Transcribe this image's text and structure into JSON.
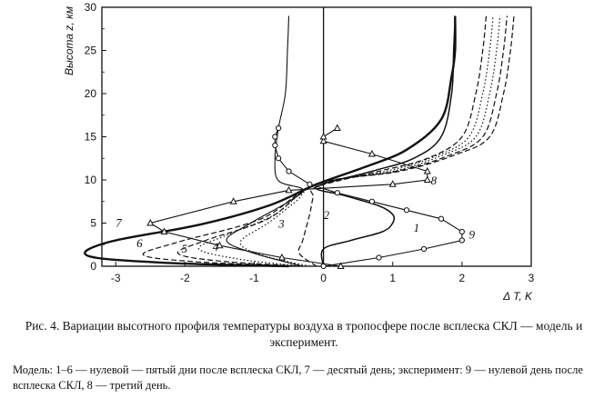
{
  "caption": {
    "title": "Рис. 4. Вариации высотного профиля температуры воздуха в тропосфере после всплеска СКЛ — модель и эксперимент.",
    "legend": "Модель: 1–6 — нулевой — пятый дни после всплеска СКЛ, 7 — десятый день; эксперимент: 9 — нулевой день после всплеска СКЛ, 8 — третий день."
  },
  "chart_data": {
    "type": "line",
    "xlabel": "Δ T, K",
    "ylabel": "Высота z, км",
    "xlim": [
      -3.2,
      3.0
    ],
    "ylim": [
      0,
      30
    ],
    "xticks": [
      -3,
      -2,
      -1,
      0,
      1,
      2,
      3
    ],
    "yticks": [
      0,
      5,
      10,
      15,
      20,
      25,
      30
    ],
    "series": [
      {
        "name": "1",
        "style": "solid",
        "points": [
          [
            0,
            0
          ],
          [
            0,
            2
          ],
          [
            0.4,
            3
          ],
          [
            0.85,
            4
          ],
          [
            1.0,
            5
          ],
          [
            1.0,
            6
          ],
          [
            0.8,
            7
          ],
          [
            0.3,
            8.2
          ],
          [
            -0.1,
            9.2
          ],
          [
            0.7,
            11
          ],
          [
            1.3,
            12.5
          ],
          [
            1.7,
            15
          ],
          [
            1.85,
            20
          ],
          [
            1.88,
            25
          ],
          [
            1.9,
            29
          ]
        ]
      },
      {
        "name": "2",
        "style": "dashed",
        "points": [
          [
            -0.1,
            0
          ],
          [
            -0.35,
            1.5
          ],
          [
            -0.3,
            3
          ],
          [
            -0.2,
            6
          ],
          [
            -0.15,
            8
          ],
          [
            -0.1,
            9.2
          ],
          [
            0.8,
            11
          ],
          [
            1.5,
            12.5
          ],
          [
            2.0,
            15
          ],
          [
            2.2,
            20
          ],
          [
            2.3,
            25
          ],
          [
            2.35,
            29
          ]
        ]
      },
      {
        "name": "3",
        "style": "dotted",
        "points": [
          [
            -0.2,
            0
          ],
          [
            -0.9,
            1.3
          ],
          [
            -1.2,
            2.8
          ],
          [
            -0.8,
            5
          ],
          [
            -0.4,
            7.5
          ],
          [
            -0.1,
            9.5
          ],
          [
            0.9,
            11
          ],
          [
            1.6,
            12.7
          ],
          [
            2.1,
            15
          ],
          [
            2.3,
            20
          ],
          [
            2.4,
            25
          ],
          [
            2.45,
            29
          ]
        ]
      },
      {
        "name": "4",
        "style": "dotted",
        "points": [
          [
            -0.3,
            0
          ],
          [
            -1.2,
            0.8
          ],
          [
            -1.8,
            2
          ],
          [
            -1.4,
            3.6
          ],
          [
            -0.7,
            6
          ],
          [
            -0.1,
            9.5
          ],
          [
            1.0,
            11
          ],
          [
            1.7,
            12.8
          ],
          [
            2.2,
            15
          ],
          [
            2.4,
            20
          ],
          [
            2.5,
            25
          ],
          [
            2.55,
            29
          ]
        ]
      },
      {
        "name": "5",
        "style": "dashed",
        "points": [
          [
            -0.3,
            0
          ],
          [
            -1.5,
            0.6
          ],
          [
            -2.1,
            1.5
          ],
          [
            -1.7,
            3
          ],
          [
            -0.8,
            5.5
          ],
          [
            -0.1,
            9.5
          ],
          [
            1.05,
            11
          ],
          [
            1.8,
            12.8
          ],
          [
            2.3,
            15
          ],
          [
            2.5,
            20
          ],
          [
            2.6,
            25
          ],
          [
            2.65,
            29
          ]
        ]
      },
      {
        "name": "6",
        "style": "dashed",
        "points": [
          [
            -0.35,
            0
          ],
          [
            -1.8,
            0.5
          ],
          [
            -2.6,
            1.3
          ],
          [
            -2.1,
            2.8
          ],
          [
            -0.9,
            5.5
          ],
          [
            -0.1,
            9.5
          ],
          [
            1.1,
            11
          ],
          [
            1.9,
            12.9
          ],
          [
            2.4,
            15
          ],
          [
            2.6,
            20
          ],
          [
            2.7,
            25
          ],
          [
            2.75,
            29
          ]
        ]
      },
      {
        "name": "7",
        "style": "solid-bold",
        "points": [
          [
            -0.5,
            0
          ],
          [
            -2.3,
            0.4
          ],
          [
            -3.4,
            1.2
          ],
          [
            -3.1,
            2.8
          ],
          [
            -1.8,
            4.8
          ],
          [
            -0.8,
            7
          ],
          [
            -0.1,
            9.5
          ],
          [
            0.6,
            11.5
          ],
          [
            1.2,
            13.5
          ],
          [
            1.7,
            17
          ],
          [
            1.85,
            22
          ],
          [
            1.9,
            25
          ],
          [
            1.9,
            29
          ]
        ]
      },
      {
        "name": "8",
        "style": "triangles",
        "points": [
          [
            0.25,
            0
          ],
          [
            -0.6,
            1.0
          ],
          [
            -1.5,
            2.4
          ],
          [
            -2.3,
            4
          ],
          [
            -2.5,
            5
          ],
          [
            -1.3,
            7.5
          ],
          [
            -0.5,
            8.8
          ],
          [
            1.0,
            9.5
          ],
          [
            1.5,
            10
          ],
          [
            1.5,
            11
          ],
          [
            0.7,
            13
          ],
          [
            0,
            14.5
          ],
          [
            0,
            15
          ],
          [
            0.2,
            16
          ]
        ]
      },
      {
        "name": "9",
        "style": "circles",
        "points": [
          [
            0,
            0
          ],
          [
            0.8,
            1
          ],
          [
            1.45,
            2
          ],
          [
            2.0,
            3
          ],
          [
            2.0,
            4
          ],
          [
            1.7,
            5.5
          ],
          [
            1.2,
            6.5
          ],
          [
            0.7,
            7.5
          ],
          [
            0.2,
            8.5
          ],
          [
            -0.2,
            9.5
          ],
          [
            -0.5,
            11
          ],
          [
            -0.65,
            12.5
          ],
          [
            -0.7,
            14
          ],
          [
            -0.7,
            15
          ],
          [
            -0.65,
            16
          ]
        ]
      }
    ],
    "series_10_thin": {
      "style": "solid-thin",
      "points": [
        [
          -0.3,
          0
        ],
        [
          -1.0,
          1.5
        ],
        [
          -1.4,
          3
        ],
        [
          -1.05,
          5
        ],
        [
          -0.5,
          7.5
        ],
        [
          -0.3,
          8.9
        ],
        [
          -0.65,
          9.9
        ],
        [
          -0.7,
          12.5
        ],
        [
          -0.65,
          16
        ],
        [
          -0.55,
          20
        ],
        [
          -0.52,
          25
        ],
        [
          -0.5,
          29
        ]
      ]
    }
  }
}
